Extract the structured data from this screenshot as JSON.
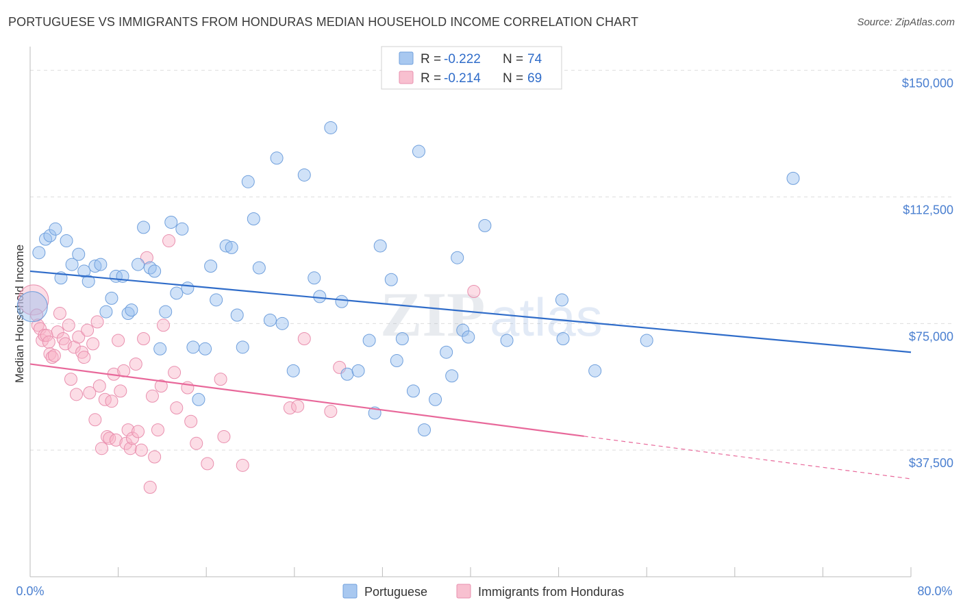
{
  "title": "PORTUGUESE VS IMMIGRANTS FROM HONDURAS MEDIAN HOUSEHOLD INCOME CORRELATION CHART",
  "source": "Source: ZipAtlas.com",
  "watermark": {
    "zip": "ZIP",
    "atlas": "atlas"
  },
  "legend": {
    "r_label": "R =",
    "n_label": "N =",
    "entries": [
      {
        "r": "-0.222",
        "n": "74",
        "color": "#a8c8f0",
        "stroke": "#6f9fdc"
      },
      {
        "r": "-0.214",
        "n": "69",
        "color": "#f8c0d0",
        "stroke": "#e98fae"
      }
    ]
  },
  "bottom_legend": [
    "Portuguese",
    "Immigrants from Honduras"
  ],
  "colors": {
    "blue_line": "#2f6cc9",
    "pink_line": "#e8689a",
    "blue_fill": "rgba(150,190,240,0.45)",
    "blue_stroke": "#6f9fdc",
    "pink_fill": "rgba(248,180,200,0.45)",
    "pink_stroke": "#e98fae"
  },
  "chart_data": {
    "type": "scatter",
    "ylabel": "Median Household Income",
    "xlim": [
      0,
      80
    ],
    "ylim": [
      0,
      155000
    ],
    "x_tick_labels": [
      "0.0%",
      "80.0%"
    ],
    "y_ticks": [
      {
        "value": 150000,
        "label": "$150,000"
      },
      {
        "value": 112500,
        "label": "$112,500"
      },
      {
        "value": 75000,
        "label": "$75,000"
      },
      {
        "value": 37500,
        "label": "$37,500"
      }
    ],
    "series": [
      {
        "name": "Portuguese",
        "trend": {
          "x0": 0,
          "y0": 90500,
          "x1": 80,
          "y1": 66500,
          "solid_until": 80
        },
        "points": [
          [
            0.2,
            80000
          ],
          [
            0.8,
            96000
          ],
          [
            1.4,
            100000
          ],
          [
            1.8,
            101000
          ],
          [
            2.3,
            103000
          ],
          [
            2.8,
            88500
          ],
          [
            3.3,
            99500
          ],
          [
            3.8,
            92500
          ],
          [
            4.4,
            95500
          ],
          [
            4.9,
            90500
          ],
          [
            5.3,
            87500
          ],
          [
            5.9,
            92000
          ],
          [
            6.4,
            92500
          ],
          [
            6.9,
            78500
          ],
          [
            7.4,
            82500
          ],
          [
            7.8,
            89000
          ],
          [
            8.4,
            89000
          ],
          [
            8.9,
            78000
          ],
          [
            9.2,
            79000
          ],
          [
            9.8,
            92500
          ],
          [
            10.3,
            103500
          ],
          [
            10.9,
            91500
          ],
          [
            11.3,
            90500
          ],
          [
            11.8,
            67500
          ],
          [
            12.3,
            78500
          ],
          [
            12.8,
            105000
          ],
          [
            13.3,
            84000
          ],
          [
            13.8,
            103000
          ],
          [
            14.3,
            85500
          ],
          [
            14.8,
            68000
          ],
          [
            15.3,
            52500
          ],
          [
            15.9,
            67500
          ],
          [
            16.4,
            92000
          ],
          [
            16.9,
            82000
          ],
          [
            17.8,
            98000
          ],
          [
            18.3,
            97500
          ],
          [
            18.8,
            77500
          ],
          [
            19.3,
            68000
          ],
          [
            19.8,
            117000
          ],
          [
            20.3,
            106000
          ],
          [
            20.8,
            91500
          ],
          [
            21.8,
            76000
          ],
          [
            22.4,
            124000
          ],
          [
            22.9,
            75000
          ],
          [
            23.9,
            61000
          ],
          [
            24.9,
            119000
          ],
          [
            25.8,
            88500
          ],
          [
            26.3,
            83000
          ],
          [
            27.3,
            133000
          ],
          [
            28.3,
            81500
          ],
          [
            28.8,
            60000
          ],
          [
            29.8,
            61000
          ],
          [
            30.8,
            70000
          ],
          [
            31.3,
            48500
          ],
          [
            31.8,
            98000
          ],
          [
            32.8,
            88000
          ],
          [
            33.3,
            64000
          ],
          [
            33.8,
            70500
          ],
          [
            34.8,
            55000
          ],
          [
            35.3,
            126000
          ],
          [
            35.8,
            43500
          ],
          [
            36.8,
            52500
          ],
          [
            37.8,
            66500
          ],
          [
            38.3,
            59500
          ],
          [
            38.8,
            94500
          ],
          [
            39.3,
            73000
          ],
          [
            39.8,
            71000
          ],
          [
            41.3,
            104000
          ],
          [
            43.3,
            70000
          ],
          [
            48.3,
            82000
          ],
          [
            48.4,
            70500
          ],
          [
            51.3,
            61000
          ],
          [
            69.3,
            118000
          ],
          [
            56.0,
            70000
          ]
        ]
      },
      {
        "name": "Immigrants from Honduras",
        "trend": {
          "x0": 0,
          "y0": 63000,
          "x1": 80,
          "y1": 29000,
          "solid_until": 50.3
        },
        "points": [
          [
            0.3,
            82000
          ],
          [
            0.6,
            77500
          ],
          [
            0.7,
            74500
          ],
          [
            0.9,
            73500
          ],
          [
            1.1,
            70000
          ],
          [
            1.3,
            71500
          ],
          [
            1.5,
            71500
          ],
          [
            1.7,
            69500
          ],
          [
            1.8,
            66000
          ],
          [
            2.0,
            65000
          ],
          [
            2.2,
            65500
          ],
          [
            2.5,
            72500
          ],
          [
            2.7,
            78000
          ],
          [
            3.0,
            70500
          ],
          [
            3.2,
            69000
          ],
          [
            3.5,
            74500
          ],
          [
            3.7,
            58500
          ],
          [
            4.0,
            68000
          ],
          [
            4.2,
            54000
          ],
          [
            4.4,
            71000
          ],
          [
            4.7,
            66500
          ],
          [
            4.9,
            65000
          ],
          [
            5.2,
            73000
          ],
          [
            5.4,
            54500
          ],
          [
            5.7,
            69000
          ],
          [
            5.9,
            46500
          ],
          [
            6.1,
            75500
          ],
          [
            6.3,
            56500
          ],
          [
            6.5,
            38000
          ],
          [
            6.8,
            52500
          ],
          [
            7.0,
            41500
          ],
          [
            7.2,
            41000
          ],
          [
            7.4,
            52000
          ],
          [
            7.6,
            60000
          ],
          [
            7.8,
            40500
          ],
          [
            8.0,
            70000
          ],
          [
            8.2,
            55000
          ],
          [
            8.5,
            61000
          ],
          [
            8.7,
            39500
          ],
          [
            8.9,
            43500
          ],
          [
            9.1,
            38000
          ],
          [
            9.3,
            41000
          ],
          [
            9.6,
            63000
          ],
          [
            9.8,
            43000
          ],
          [
            10.1,
            37500
          ],
          [
            10.3,
            70500
          ],
          [
            10.6,
            94500
          ],
          [
            10.9,
            26500
          ],
          [
            11.1,
            53500
          ],
          [
            11.3,
            35500
          ],
          [
            11.6,
            43500
          ],
          [
            11.9,
            56500
          ],
          [
            12.1,
            74500
          ],
          [
            12.6,
            99500
          ],
          [
            13.1,
            60500
          ],
          [
            13.3,
            50000
          ],
          [
            14.3,
            56000
          ],
          [
            14.6,
            46000
          ],
          [
            15.1,
            39500
          ],
          [
            16.1,
            33500
          ],
          [
            17.3,
            58500
          ],
          [
            17.6,
            41500
          ],
          [
            19.3,
            33000
          ],
          [
            23.6,
            50000
          ],
          [
            24.3,
            50500
          ],
          [
            24.9,
            70500
          ],
          [
            27.3,
            49000
          ],
          [
            28.1,
            62000
          ],
          [
            40.3,
            84500
          ]
        ]
      }
    ]
  }
}
